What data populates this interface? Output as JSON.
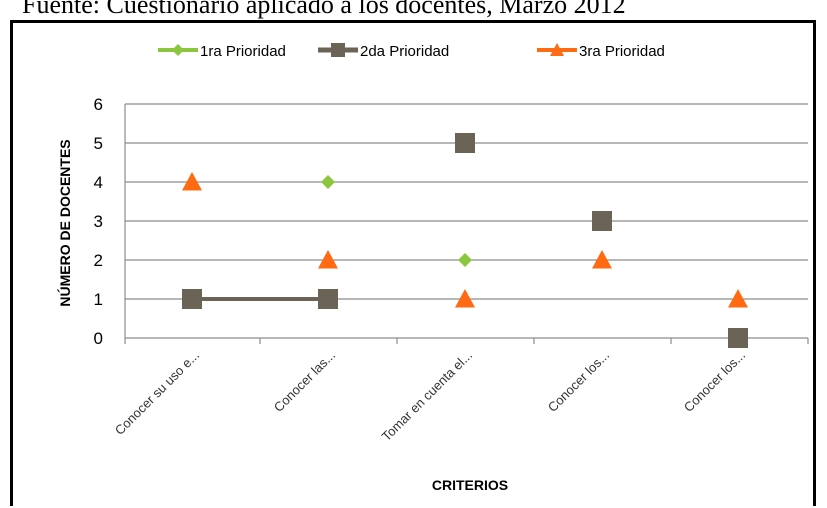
{
  "caption": "Fuente: Cuestionario aplicado a los docentes, Marzo 2012",
  "colors": {
    "s1": "#8cc63f",
    "s2": "#6b6456",
    "s3": "#ff6a13",
    "grid": "#8c8c8c"
  },
  "chart_data": {
    "type": "line",
    "categories": [
      "Conocer su uso e...",
      "Conocer las...",
      "Tomar en cuenta el...",
      "Conocer los...",
      "Conocer los..."
    ],
    "series": [
      {
        "name": "1ra Prioridad",
        "marker": "diamond",
        "values": [
          null,
          4,
          2,
          null,
          null
        ]
      },
      {
        "name": "2da Prioridad",
        "marker": "square",
        "values": [
          1,
          1,
          5,
          3,
          0
        ]
      },
      {
        "name": "3ra Prioridad",
        "marker": "triangle",
        "values": [
          4,
          2,
          1,
          2,
          1
        ]
      }
    ],
    "xlabel": "CRITERIOS",
    "ylabel": "NÚMERO DE DOCENTES",
    "ylim": [
      0,
      6
    ],
    "yticks": [
      0,
      1,
      2,
      3,
      4,
      5,
      6
    ],
    "grid": true,
    "legend_position": "top"
  }
}
